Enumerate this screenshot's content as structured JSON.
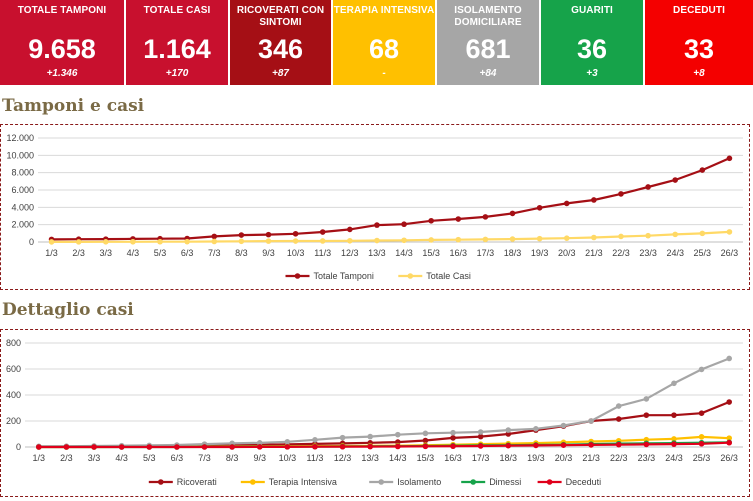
{
  "tiles": [
    {
      "label": "TOTALE TAMPONI",
      "value": "9.658",
      "delta": "+1.346",
      "color": "#c8102e"
    },
    {
      "label": "TOTALE CASI",
      "value": "1.164",
      "delta": "+170",
      "color": "#c8102e"
    },
    {
      "label": "RICOVERATI CON SINTOMI",
      "value": "346",
      "delta": "+87",
      "color": "#a50f15"
    },
    {
      "label": "TERAPIA INTENSIVA",
      "value": "68",
      "delta": "-",
      "color": "#ffc000"
    },
    {
      "label": "ISOLAMENTO DOMICILIARE",
      "value": "681",
      "delta": "+84",
      "color": "#a6a6a6"
    },
    {
      "label": "GUARITI",
      "value": "36",
      "delta": "+3",
      "color": "#16a34a"
    },
    {
      "label": "DECEDUTI",
      "value": "33",
      "delta": "+8",
      "color": "#f40000"
    }
  ],
  "sections": {
    "tamponi_title": "Tamponi e casi",
    "dettaglio_title": "Dettaglio casi"
  },
  "chart_data": [
    {
      "type": "line",
      "title": "Tamponi e casi",
      "x": [
        "1/3",
        "2/3",
        "3/3",
        "4/3",
        "5/3",
        "6/3",
        "7/3",
        "8/3",
        "9/3",
        "10/3",
        "11/3",
        "12/3",
        "13/3",
        "14/3",
        "15/3",
        "16/3",
        "17/3",
        "18/3",
        "19/3",
        "20/3",
        "21/3",
        "22/3",
        "23/3",
        "24/3",
        "25/3",
        "26/3"
      ],
      "ylim": [
        0,
        12000
      ],
      "yticks": [
        "0",
        "2.000",
        "4.000",
        "6.000",
        "8.000",
        "10.000",
        "12.000"
      ],
      "ytick_values": [
        0,
        2000,
        4000,
        6000,
        8000,
        10000,
        12000
      ],
      "grid": true,
      "legend": "bottom",
      "series": [
        {
          "name": "Totale Tamponi",
          "color": "#a50f15",
          "values": [
            300,
            320,
            330,
            360,
            380,
            400,
            650,
            800,
            850,
            950,
            1150,
            1450,
            1950,
            2050,
            2450,
            2650,
            2900,
            3300,
            3950,
            4450,
            4850,
            5550,
            6350,
            7150,
            8300,
            9658
          ]
        },
        {
          "name": "Totale Casi",
          "color": "#ffd966",
          "values": [
            10,
            15,
            20,
            25,
            30,
            40,
            60,
            80,
            100,
            110,
            120,
            140,
            170,
            200,
            240,
            270,
            300,
            340,
            390,
            440,
            520,
            640,
            730,
            880,
            994,
            1164
          ]
        }
      ]
    },
    {
      "type": "line",
      "title": "Dettaglio casi",
      "x": [
        "1/3",
        "2/3",
        "3/3",
        "4/3",
        "5/3",
        "6/3",
        "7/3",
        "8/3",
        "9/3",
        "10/3",
        "11/3",
        "12/3",
        "13/3",
        "14/3",
        "15/3",
        "16/3",
        "17/3",
        "18/3",
        "19/3",
        "20/3",
        "21/3",
        "22/3",
        "23/3",
        "24/3",
        "25/3",
        "26/3"
      ],
      "ylim": [
        0,
        800
      ],
      "yticks": [
        "0",
        "200",
        "400",
        "600",
        "800"
      ],
      "ytick_values": [
        0,
        200,
        400,
        600,
        800
      ],
      "grid": true,
      "legend": "bottom",
      "series": [
        {
          "name": "Ricoverati",
          "color": "#a50f15",
          "values": [
            2,
            2,
            3,
            4,
            5,
            7,
            10,
            14,
            16,
            20,
            24,
            28,
            32,
            38,
            50,
            70,
            80,
            100,
            130,
            160,
            200,
            215,
            245,
            245,
            260,
            346
          ]
        },
        {
          "name": "Terapia Intensiva",
          "color": "#ffc000",
          "values": [
            0,
            0,
            0,
            1,
            1,
            2,
            3,
            4,
            5,
            6,
            7,
            8,
            9,
            10,
            14,
            18,
            22,
            26,
            30,
            36,
            42,
            48,
            56,
            62,
            78,
            68
          ]
        },
        {
          "name": "Isolamento",
          "color": "#a6a6a6",
          "values": [
            5,
            6,
            8,
            10,
            12,
            15,
            22,
            28,
            32,
            40,
            55,
            72,
            80,
            95,
            105,
            110,
            115,
            130,
            140,
            165,
            200,
            315,
            370,
            490,
            597,
            681
          ]
        },
        {
          "name": "Dimessi",
          "color": "#16a34a",
          "values": [
            0,
            0,
            0,
            0,
            0,
            0,
            1,
            1,
            2,
            2,
            3,
            4,
            5,
            6,
            8,
            10,
            12,
            14,
            16,
            18,
            22,
            26,
            28,
            30,
            33,
            36
          ]
        },
        {
          "name": "Deceduti",
          "color": "#e0001b",
          "values": [
            0,
            0,
            0,
            0,
            0,
            0,
            0,
            0,
            1,
            1,
            2,
            2,
            3,
            4,
            5,
            6,
            8,
            10,
            12,
            14,
            16,
            18,
            20,
            22,
            25,
            33
          ]
        }
      ]
    }
  ]
}
